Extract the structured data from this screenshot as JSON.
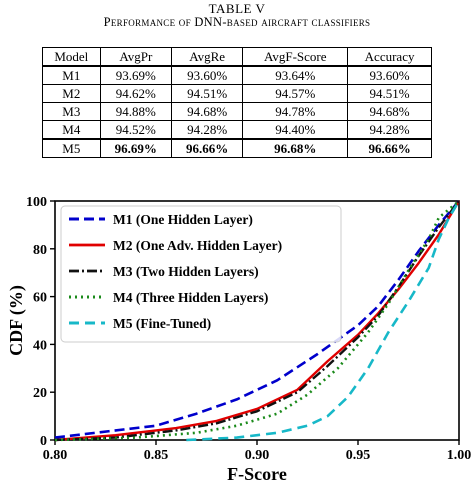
{
  "table": {
    "number": "TABLE V",
    "title": "Performance of DNN-based aircraft classifiers",
    "headers": [
      "Model",
      "AvgPr",
      "AvgRe",
      "AvgF-Score",
      "Accuracy"
    ],
    "rows": [
      [
        "M1",
        "93.69%",
        "93.60%",
        "93.64%",
        "93.60%"
      ],
      [
        "M2",
        "94.62%",
        "94.51%",
        "94.57%",
        "94.51%"
      ],
      [
        "M3",
        "94.88%",
        "94.68%",
        "94.78%",
        "94.68%"
      ],
      [
        "M4",
        "94.52%",
        "94.28%",
        "94.40%",
        "94.28%"
      ],
      [
        "M5",
        "96.69%",
        "96.66%",
        "96.68%",
        "96.66%"
      ]
    ],
    "bold_row": 4
  },
  "chart_data": {
    "type": "line",
    "xlabel": "F-Score",
    "ylabel": "CDF (%)",
    "xlim": [
      0.8,
      1.0
    ],
    "ylim": [
      0,
      100
    ],
    "xticks": [
      "0.80",
      "0.85",
      "0.90",
      "0.95",
      "1.00"
    ],
    "yticks": [
      "0",
      "20",
      "40",
      "60",
      "80",
      "100"
    ],
    "legend_position": "top-left",
    "series": [
      {
        "name": "M1 (One Hidden Layer)",
        "color": "#0000cc",
        "dash": "10,5",
        "width": 2.6,
        "points": [
          [
            0.8,
            1
          ],
          [
            0.82,
            3
          ],
          [
            0.85,
            6
          ],
          [
            0.87,
            11
          ],
          [
            0.89,
            17
          ],
          [
            0.91,
            25
          ],
          [
            0.93,
            36
          ],
          [
            0.95,
            48
          ],
          [
            0.96,
            56
          ],
          [
            0.97,
            67
          ],
          [
            0.98,
            79
          ],
          [
            0.99,
            90
          ],
          [
            1.0,
            100
          ]
        ]
      },
      {
        "name": "M2 (One Adv. Hidden Layer)",
        "color": "#e00000",
        "dash": "",
        "width": 2.4,
        "points": [
          [
            0.8,
            0
          ],
          [
            0.83,
            2
          ],
          [
            0.86,
            5
          ],
          [
            0.88,
            8
          ],
          [
            0.9,
            13
          ],
          [
            0.92,
            21
          ],
          [
            0.935,
            33
          ],
          [
            0.95,
            44
          ],
          [
            0.96,
            53
          ],
          [
            0.97,
            63
          ],
          [
            0.98,
            74
          ],
          [
            0.99,
            86
          ],
          [
            1.0,
            100
          ]
        ]
      },
      {
        "name": "M3 (Two Hidden Layers)",
        "color": "#111111",
        "dash": "10,3,2,3",
        "width": 2.4,
        "points": [
          [
            0.8,
            0
          ],
          [
            0.83,
            1
          ],
          [
            0.86,
            4
          ],
          [
            0.88,
            7
          ],
          [
            0.9,
            12
          ],
          [
            0.92,
            20
          ],
          [
            0.935,
            31
          ],
          [
            0.95,
            43
          ],
          [
            0.96,
            52
          ],
          [
            0.97,
            64
          ],
          [
            0.98,
            77
          ],
          [
            0.99,
            89
          ],
          [
            1.0,
            100
          ]
        ]
      },
      {
        "name": "M4 (Three Hidden Layers)",
        "color": "#1a8a1a",
        "dash": "2,4",
        "width": 2.6,
        "points": [
          [
            0.8,
            0
          ],
          [
            0.84,
            1
          ],
          [
            0.87,
            3
          ],
          [
            0.89,
            6
          ],
          [
            0.91,
            11
          ],
          [
            0.925,
            19
          ],
          [
            0.94,
            30
          ],
          [
            0.955,
            45
          ],
          [
            0.965,
            57
          ],
          [
            0.975,
            71
          ],
          [
            0.985,
            84
          ],
          [
            0.99,
            93
          ],
          [
            1.0,
            100
          ]
        ]
      },
      {
        "name": "M5 (Fine-Tuned)",
        "color": "#17b8c8",
        "dash": "10,6",
        "width": 2.6,
        "points": [
          [
            0.865,
            0
          ],
          [
            0.89,
            1
          ],
          [
            0.91,
            3
          ],
          [
            0.925,
            6
          ],
          [
            0.935,
            10
          ],
          [
            0.945,
            18
          ],
          [
            0.955,
            30
          ],
          [
            0.965,
            45
          ],
          [
            0.975,
            58
          ],
          [
            0.985,
            72
          ],
          [
            0.99,
            84
          ],
          [
            0.995,
            93
          ],
          [
            1.0,
            100
          ]
        ]
      }
    ]
  }
}
